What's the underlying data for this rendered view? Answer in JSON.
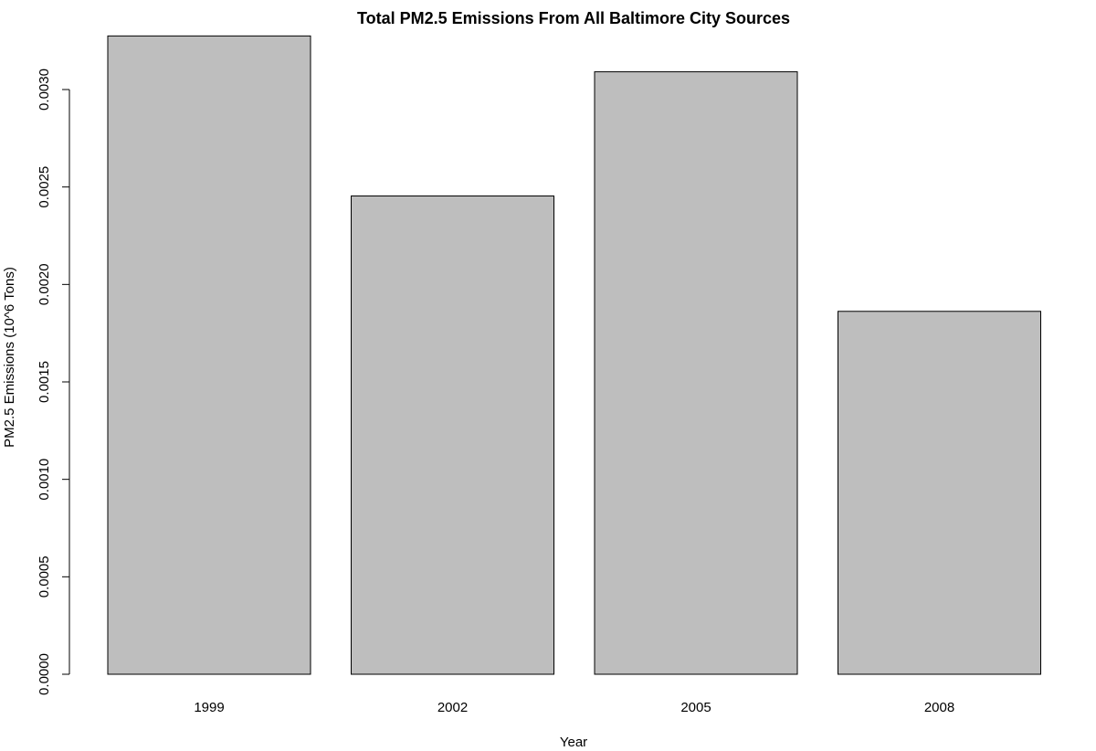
{
  "chart_data": {
    "type": "bar",
    "title": "Total PM2.5 Emissions From All Baltimore City Sources",
    "xlabel": "Year",
    "ylabel": "PM2.5 Emissions (10^6 Tons)",
    "categories": [
      "1999",
      "2002",
      "2005",
      "2008"
    ],
    "values": [
      0.003275,
      0.002454,
      0.003091,
      0.001862
    ],
    "ylim": [
      0,
      0.0033
    ],
    "yticks": [
      0.0,
      0.0005,
      0.001,
      0.0015,
      0.002,
      0.0025,
      0.003
    ],
    "ytick_labels": [
      "0.0000",
      "0.0005",
      "0.0010",
      "0.0015",
      "0.0020",
      "0.0025",
      "0.0030"
    ],
    "grid": false,
    "legend": "none",
    "colors": {
      "bar_fill": "#bebebe",
      "bar_stroke": "#000000"
    }
  }
}
